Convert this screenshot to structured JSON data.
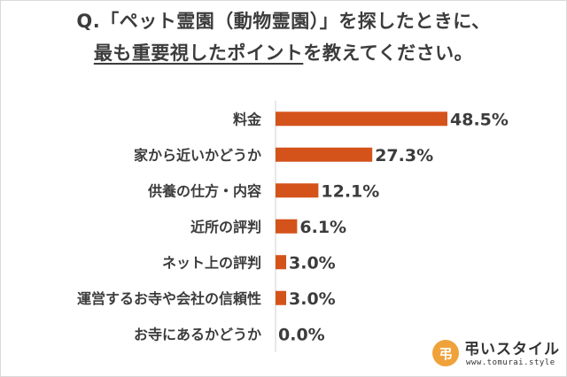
{
  "title": {
    "line1": "Q.「ペット霊園（動物霊園）」を探したときに、",
    "line2_underlined": "最も重要視したポイント",
    "line2_rest": "を教えてください。"
  },
  "chart_data": {
    "type": "bar",
    "orientation": "horizontal",
    "categories": [
      "料金",
      "家から近いかどうか",
      "供養の仕方・内容",
      "近所の評判",
      "ネット上の評判",
      "運営するお寺や会社の信頼性",
      "お寺にあるかどうか"
    ],
    "values": [
      48.5,
      27.3,
      12.1,
      6.1,
      3.0,
      3.0,
      0.0
    ],
    "value_labels": [
      "48.5%",
      "27.3%",
      "12.1%",
      "6.1%",
      "3.0%",
      "3.0%",
      "0.0%"
    ],
    "title": "",
    "xlabel": "",
    "ylabel": "",
    "xlim": [
      0,
      100
    ],
    "grid": false,
    "legend": "none",
    "bar_color": "#d4531b"
  },
  "logo": {
    "mark": "弔",
    "name": "弔いスタイル",
    "url": "www.tomurai.style"
  },
  "colors": {
    "accent": "#d4531b",
    "text": "#3c3c3c",
    "logo_orange": "#f0a23a"
  }
}
